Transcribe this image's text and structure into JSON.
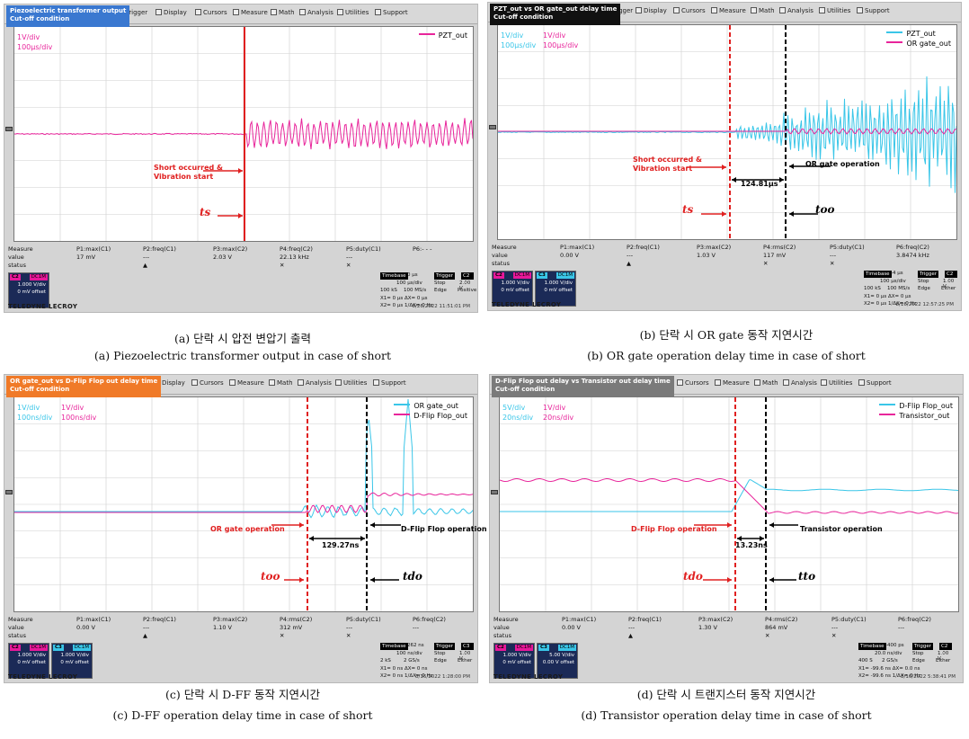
{
  "menu": {
    "trigger": "Trigger",
    "display": "Display",
    "cursors": "Cursors",
    "measure": "Measure",
    "math": "Math",
    "analysis": "Analysis",
    "utilities": "Utilities",
    "support": "Support"
  },
  "measure_labels": {
    "measure": "Measure",
    "value": "value",
    "status": "status"
  },
  "brand": "TELEDYNE LECROY",
  "colors": {
    "pink": "#e8259b",
    "cyan": "#3ac6e8",
    "red": "#e02020",
    "tb_red": "#e8189a"
  },
  "panels": [
    {
      "title": [
        "Piezoelectric transformer output",
        "Cut-off condition"
      ],
      "title_bg": "#3a78d0",
      "scale1": [
        "1V/div",
        "100μs/div"
      ],
      "legend": [
        {
          "name": "PZT_out",
          "color": "#e8259b"
        }
      ],
      "params": [
        "P1:max(C1)",
        "P2:freq(C1)",
        "P3:max(C2)",
        "P4:freq(C2)",
        "P5:duty(C1)",
        "P6:- - -"
      ],
      "values": [
        "17 mV",
        "---",
        "2.03 V",
        "22.13 kHz",
        "---",
        ""
      ],
      "channels": [
        {
          "tag": "C2",
          "tag2": "DC1M",
          "v": "1.000 V/div",
          "o": "0 mV offset",
          "color": "#e8189a"
        }
      ],
      "timebase": {
        "tb": "Timebase",
        "tbv": "0 μs",
        "trig": "Trigger",
        "trc": "C2 AC",
        "l1a": "100 μs/div",
        "l1b": "Stop",
        "l1c": "2.00 V",
        "l2a": "100 kS",
        "l2b": "100 MS/s",
        "l2c": "Edge",
        "l2d": "Positive",
        "x1": "X1= 0 μs ΔX=     0 μs",
        "x2": "X2= 0 μs 1/ΔX= 0 Hz"
      },
      "date": "5/26/2022 11:51:01 PM",
      "ann": {
        "a1": [
          "Short occurred &",
          "Vibration start"
        ],
        "t1": "ts"
      },
      "caption_ko": "(a) 단락 시 압전 변압기 출력",
      "caption_en": "(a) Piezoelectric transformer output in case of short"
    },
    {
      "title": [
        "PZT_out vs OR gate_out delay time",
        "Cut-off condition"
      ],
      "title_bg": "#111111",
      "scale1": [
        "1V/div",
        "100μs/div"
      ],
      "scale2": [
        "1V/div",
        "100μs/div"
      ],
      "legend": [
        {
          "name": "PZT_out",
          "color": "#3ac6e8"
        },
        {
          "name": "OR gate_out",
          "color": "#e8259b"
        }
      ],
      "params": [
        "P1:max(C1)",
        "P2:freq(C1)",
        "P3:max(C2)",
        "P4:rms(C2)",
        "P5:duty(C1)",
        "P6:freq(C2)"
      ],
      "values": [
        "0.00 V",
        "---",
        "1.03 V",
        "117 mV",
        "---",
        "3.8474 kHz"
      ],
      "channels": [
        {
          "tag": "C2",
          "tag2": "DC1M",
          "v": "1.000 V/div",
          "o": "0 mV offset",
          "color": "#e8189a"
        },
        {
          "tag": "C3",
          "tag2": "DC1M",
          "v": "1.000 V/div",
          "o": "0 mV offset",
          "color": "#3ac6e8"
        }
      ],
      "timebase": {
        "tb": "Timebase",
        "tbv": "-4 μs",
        "trig": "Trigger",
        "trc": "C2 DC",
        "l1a": "100 μs/div",
        "l1b": "Stop",
        "l1c": "1.00 V",
        "l2a": "100 kS",
        "l2b": "100 MS/s",
        "l2c": "Edge",
        "l2d": "Either",
        "x1": "X1= 0 μs ΔX=     0 μs",
        "x2": "X2= 0 μs 1/ΔX= 0 Hz"
      },
      "date": "8/16/2022 12:57:25 PM",
      "ann": {
        "a1": [
          "Short occurred &",
          "Vibration start"
        ],
        "a2": "OR gate operation",
        "delta": "124.81μs",
        "t1": "ts",
        "t2": "too"
      },
      "caption_ko": "(b) 단락 시 OR gate 동작 지연시간",
      "caption_en": "(b) OR gate operation delay time in case of short"
    },
    {
      "title": [
        "OR gate_out vs D-Flip Flop out delay time",
        "Cut-off condition"
      ],
      "title_bg": "#f07a28",
      "scale1": [
        "1V/div",
        "100ns/div"
      ],
      "scale2": [
        "1V/div",
        "100ns/div"
      ],
      "legend": [
        {
          "name": "OR gate_out",
          "color": "#3ac6e8"
        },
        {
          "name": "D-Flip Flop_out",
          "color": "#e8259b"
        }
      ],
      "params": [
        "P1:max(C1)",
        "P2:freq(C1)",
        "P3:max(C2)",
        "P4:rms(C2)",
        "P5:duty(C1)",
        "P6:freq(C2)"
      ],
      "values": [
        "0.00 V",
        "---",
        "1.10 V",
        "312 mV",
        "---",
        "---"
      ],
      "channels": [
        {
          "tag": "C2",
          "tag2": "DC1M",
          "v": "1.000 V/div",
          "o": "0 mV offset",
          "color": "#e8189a"
        },
        {
          "tag": "C3",
          "tag2": "DC1M",
          "v": "1.000 V/div",
          "o": "0 mV offset",
          "color": "#3ac6e8"
        }
      ],
      "timebase": {
        "tb": "Timebase",
        "tbv": "262 ns",
        "trig": "Trigger",
        "trc": "C3 AC",
        "l1a": "100 ns/div",
        "l1b": "Stop",
        "l1c": "1.00 V",
        "l2a": "2 kS",
        "l2b": "2 GS/s",
        "l2c": "Edge",
        "l2d": "Either",
        "x1": "X1= 0 ns ΔX=     0 ns",
        "x2": "X2= 0 ns 1/ΔX= 0 Hz"
      },
      "date": "8/16/2022 1:28:00 PM",
      "ann": {
        "a1": "OR gate operation",
        "a2": "D-Flip Flop operation",
        "delta": "129.27ns",
        "t1": "too",
        "t2": "tdo"
      },
      "caption_ko": "(c) 단락 시 D-FF 동작 지연시간",
      "caption_en": "(c) D-FF operation delay time in case of short"
    },
    {
      "title": [
        "D-Flip Flop out delay vs Transistor out delay time",
        "Cut-off condition"
      ],
      "title_bg": "#7a7a7a",
      "scale1": [
        "5V/div",
        "20ns/div"
      ],
      "scale2": [
        "1V/div",
        "20ns/div"
      ],
      "legend": [
        {
          "name": "D-Flip Flop_out",
          "color": "#3ac6e8"
        },
        {
          "name": "Transistor_out",
          "color": "#e8259b"
        }
      ],
      "params": [
        "P1:max(C1)",
        "P2:freq(C1)",
        "P3:max(C2)",
        "P4:rms(C2)",
        "P5:duty(C1)",
        "P6:freq(C2)"
      ],
      "values": [
        "0.00 V",
        "---",
        "1.30 V",
        "864 mV",
        "---",
        "---"
      ],
      "channels": [
        {
          "tag": "C2",
          "tag2": "DC1M",
          "v": "1.000 V/div",
          "o": "0 mV offset",
          "color": "#e8189a"
        },
        {
          "tag": "C3",
          "tag2": "DC1M",
          "v": "5.00 V/div",
          "o": "0.00 V offset",
          "color": "#3ac6e8"
        }
      ],
      "timebase": {
        "tb": "Timebase",
        "tbv": "-400 ps",
        "trig": "Trigger",
        "trc": "C2 AC",
        "l1a": "20.0 ns/div",
        "l1b": "Stop",
        "l1c": "1.00 V",
        "l2a": "400 S",
        "l2b": "2 GS/s",
        "l2c": "Edge",
        "l2d": "Either",
        "x1": "X1= -99.6 ns ΔX=    0.0 ns",
        "x2": "X2= -99.6 ns 1/ΔX= 0 Hz"
      },
      "date": "8/16/2022 5:38:41 PM",
      "ann": {
        "a1": "D-Flip Flop operation",
        "a2": "Transistor operation",
        "delta": "13.23ns",
        "t1": "tdo",
        "t2": "tto"
      },
      "caption_ko": "(d) 단락 시 트랜지스터 동작 지연시간",
      "caption_en": "(d) Transistor operation delay time in case of short"
    }
  ]
}
